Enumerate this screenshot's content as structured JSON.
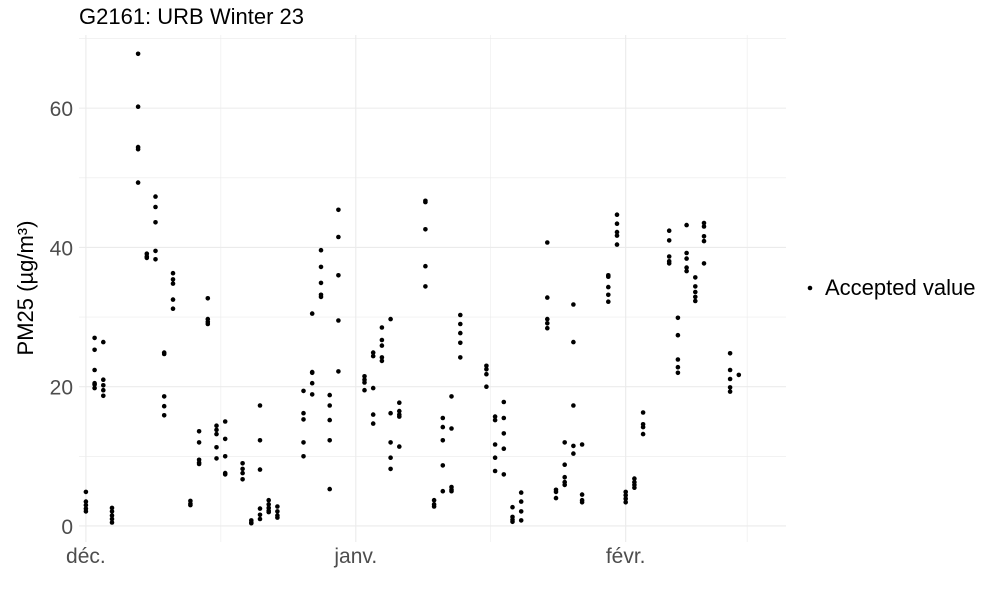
{
  "chart_data": {
    "type": "scatter",
    "title": "G2161: URB Winter 23",
    "xlabel": "",
    "ylabel": "PM25",
    "y_unit": "µg/m³",
    "ylim": [
      -2.3,
      70.5
    ],
    "y_ticks": [
      0,
      20,
      40,
      60
    ],
    "x_ticks": [
      {
        "label": "déc.",
        "date": "2023-12-01"
      },
      {
        "label": "janv.",
        "date": "2024-01-01"
      },
      {
        "label": "févr.",
        "date": "2024-02-01"
      }
    ],
    "xlim": [
      "2023-11-30T05:00",
      "2024-02-19T10:00"
    ],
    "grid": true,
    "legend": {
      "position": "right",
      "entries": [
        "Accepted value"
      ]
    },
    "colors": {
      "points": "#000000",
      "grid": "#ebebeb",
      "tick_text": "#4d4d4d"
    },
    "series": [
      {
        "name": "Accepted value",
        "points": [
          [
            "2023-12-01",
            2.5
          ],
          [
            "2023-12-01",
            3.0
          ],
          [
            "2023-12-01",
            3.5
          ],
          [
            "2023-12-01",
            4.9
          ],
          [
            "2023-12-01",
            2.1
          ],
          [
            "2023-12-02",
            25.3
          ],
          [
            "2023-12-02",
            27.0
          ],
          [
            "2023-12-02",
            22.4
          ],
          [
            "2023-12-02",
            20.5
          ],
          [
            "2023-12-02",
            19.8
          ],
          [
            "2023-12-02",
            20.3
          ],
          [
            "2023-12-03",
            26.4
          ],
          [
            "2023-12-03",
            21.0
          ],
          [
            "2023-12-03",
            20.2
          ],
          [
            "2023-12-03",
            19.5
          ],
          [
            "2023-12-03",
            18.7
          ],
          [
            "2023-12-04",
            2.6
          ],
          [
            "2023-12-04",
            2.1
          ],
          [
            "2023-12-04",
            1.5
          ],
          [
            "2023-12-04",
            1.0
          ],
          [
            "2023-12-04",
            0.5
          ],
          [
            "2023-12-07",
            67.8
          ],
          [
            "2023-12-07",
            60.2
          ],
          [
            "2023-12-07",
            54.4
          ],
          [
            "2023-12-07",
            54.1
          ],
          [
            "2023-12-07",
            49.3
          ],
          [
            "2023-12-08",
            38.7
          ],
          [
            "2023-12-08",
            39.1
          ],
          [
            "2023-12-08",
            38.5
          ],
          [
            "2023-12-09",
            47.3
          ],
          [
            "2023-12-09",
            45.8
          ],
          [
            "2023-12-09",
            43.6
          ],
          [
            "2023-12-09",
            39.5
          ],
          [
            "2023-12-09",
            38.3
          ],
          [
            "2023-12-10",
            24.9
          ],
          [
            "2023-12-10",
            24.7
          ],
          [
            "2023-12-10",
            18.6
          ],
          [
            "2023-12-10",
            17.2
          ],
          [
            "2023-12-10",
            15.9
          ],
          [
            "2023-12-11",
            36.3
          ],
          [
            "2023-12-11",
            35.4
          ],
          [
            "2023-12-11",
            34.8
          ],
          [
            "2023-12-11",
            32.5
          ],
          [
            "2023-12-11",
            31.2
          ],
          [
            "2023-12-13",
            3.6
          ],
          [
            "2023-12-13",
            3.2
          ],
          [
            "2023-12-13",
            3.0
          ],
          [
            "2023-12-14",
            13.6
          ],
          [
            "2023-12-14",
            12.0
          ],
          [
            "2023-12-14",
            9.5
          ],
          [
            "2023-12-14",
            9.1
          ],
          [
            "2023-12-14",
            8.9
          ],
          [
            "2023-12-15",
            32.7
          ],
          [
            "2023-12-15",
            29.7
          ],
          [
            "2023-12-15",
            29.3
          ],
          [
            "2023-12-15",
            29.0
          ],
          [
            "2023-12-16",
            14.4
          ],
          [
            "2023-12-16",
            13.8
          ],
          [
            "2023-12-16",
            13.2
          ],
          [
            "2023-12-16",
            11.3
          ],
          [
            "2023-12-16",
            9.7
          ],
          [
            "2023-12-17",
            15.0
          ],
          [
            "2023-12-17",
            12.5
          ],
          [
            "2023-12-17",
            10.0
          ],
          [
            "2023-12-17",
            7.6
          ],
          [
            "2023-12-17",
            7.4
          ],
          [
            "2023-12-19",
            9.0
          ],
          [
            "2023-12-19",
            8.2
          ],
          [
            "2023-12-19",
            7.6
          ],
          [
            "2023-12-19",
            6.7
          ],
          [
            "2023-12-20",
            0.8
          ],
          [
            "2023-12-20",
            0.5
          ],
          [
            "2023-12-20",
            0.4
          ],
          [
            "2023-12-21",
            17.3
          ],
          [
            "2023-12-21",
            12.3
          ],
          [
            "2023-12-21",
            8.1
          ],
          [
            "2023-12-21",
            2.5
          ],
          [
            "2023-12-21",
            1.6
          ],
          [
            "2023-12-21",
            1.0
          ],
          [
            "2023-12-22",
            3.7
          ],
          [
            "2023-12-22",
            3.1
          ],
          [
            "2023-12-22",
            2.6
          ],
          [
            "2023-12-22",
            2.2
          ],
          [
            "2023-12-22",
            2.0
          ],
          [
            "2023-12-23",
            2.8
          ],
          [
            "2023-12-23",
            2.1
          ],
          [
            "2023-12-23",
            1.5
          ],
          [
            "2023-12-23",
            1.2
          ],
          [
            "2023-12-26",
            19.4
          ],
          [
            "2023-12-26",
            16.2
          ],
          [
            "2023-12-26",
            15.3
          ],
          [
            "2023-12-26",
            12.0
          ],
          [
            "2023-12-26",
            10.0
          ],
          [
            "2023-12-27",
            30.5
          ],
          [
            "2023-12-27",
            22.1
          ],
          [
            "2023-12-27",
            22.0
          ],
          [
            "2023-12-27",
            20.5
          ],
          [
            "2023-12-27",
            18.9
          ],
          [
            "2023-12-28",
            39.6
          ],
          [
            "2023-12-28",
            37.2
          ],
          [
            "2023-12-28",
            34.9
          ],
          [
            "2023-12-28",
            33.2
          ],
          [
            "2023-12-28",
            32.9
          ],
          [
            "2023-12-29",
            18.8
          ],
          [
            "2023-12-29",
            17.3
          ],
          [
            "2023-12-29",
            15.2
          ],
          [
            "2023-12-29",
            12.3
          ],
          [
            "2023-12-29",
            5.3
          ],
          [
            "2023-12-30",
            45.4
          ],
          [
            "2023-12-30",
            41.5
          ],
          [
            "2023-12-30",
            36.0
          ],
          [
            "2023-12-30",
            29.5
          ],
          [
            "2023-12-30",
            22.2
          ],
          [
            "2024-01-02",
            21.5
          ],
          [
            "2024-01-02",
            21.0
          ],
          [
            "2024-01-02",
            20.6
          ],
          [
            "2024-01-02",
            19.5
          ],
          [
            "2024-01-03",
            24.9
          ],
          [
            "2024-01-03",
            24.4
          ],
          [
            "2024-01-03",
            19.8
          ],
          [
            "2024-01-03",
            16.0
          ],
          [
            "2024-01-03",
            14.7
          ],
          [
            "2024-01-04",
            28.5
          ],
          [
            "2024-01-04",
            26.7
          ],
          [
            "2024-01-04",
            25.9
          ],
          [
            "2024-01-04",
            24.2
          ],
          [
            "2024-01-04",
            23.7
          ],
          [
            "2024-01-05",
            29.7
          ],
          [
            "2024-01-05",
            16.2
          ],
          [
            "2024-01-05",
            12.0
          ],
          [
            "2024-01-05",
            9.8
          ],
          [
            "2024-01-05",
            8.2
          ],
          [
            "2024-01-06",
            17.7
          ],
          [
            "2024-01-06",
            16.5
          ],
          [
            "2024-01-06",
            16.0
          ],
          [
            "2024-01-06",
            15.7
          ],
          [
            "2024-01-06",
            11.4
          ],
          [
            "2024-01-09",
            46.7
          ],
          [
            "2024-01-09",
            46.5
          ],
          [
            "2024-01-09",
            42.6
          ],
          [
            "2024-01-09",
            37.3
          ],
          [
            "2024-01-09",
            34.4
          ],
          [
            "2024-01-10",
            3.7
          ],
          [
            "2024-01-10",
            3.1
          ],
          [
            "2024-01-10",
            2.8
          ],
          [
            "2024-01-11",
            15.5
          ],
          [
            "2024-01-11",
            14.2
          ],
          [
            "2024-01-11",
            12.3
          ],
          [
            "2024-01-11",
            8.7
          ],
          [
            "2024-01-11",
            5.0
          ],
          [
            "2024-01-12",
            18.6
          ],
          [
            "2024-01-12",
            14.0
          ],
          [
            "2024-01-12",
            5.6
          ],
          [
            "2024-01-12",
            5.2
          ],
          [
            "2024-01-12",
            5.0
          ],
          [
            "2024-01-13",
            30.3
          ],
          [
            "2024-01-13",
            29.0
          ],
          [
            "2024-01-13",
            27.7
          ],
          [
            "2024-01-13",
            26.3
          ],
          [
            "2024-01-13",
            24.2
          ],
          [
            "2024-01-16",
            23.0
          ],
          [
            "2024-01-16",
            22.5
          ],
          [
            "2024-01-16",
            21.8
          ],
          [
            "2024-01-16",
            20.0
          ],
          [
            "2024-01-17",
            15.7
          ],
          [
            "2024-01-17",
            15.2
          ],
          [
            "2024-01-17",
            11.7
          ],
          [
            "2024-01-17",
            9.8
          ],
          [
            "2024-01-17",
            7.9
          ],
          [
            "2024-01-18",
            17.8
          ],
          [
            "2024-01-18",
            15.5
          ],
          [
            "2024-01-18",
            13.3
          ],
          [
            "2024-01-18",
            11.1
          ],
          [
            "2024-01-18",
            7.4
          ],
          [
            "2024-01-19",
            2.7
          ],
          [
            "2024-01-19",
            1.3
          ],
          [
            "2024-01-19",
            0.9
          ],
          [
            "2024-01-19",
            0.6
          ],
          [
            "2024-01-20",
            4.8
          ],
          [
            "2024-01-20",
            3.5
          ],
          [
            "2024-01-20",
            2.1
          ],
          [
            "2024-01-20",
            0.8
          ],
          [
            "2024-01-23",
            40.7
          ],
          [
            "2024-01-23",
            32.8
          ],
          [
            "2024-01-23",
            29.7
          ],
          [
            "2024-01-23",
            29.1
          ],
          [
            "2024-01-23",
            28.4
          ],
          [
            "2024-01-24",
            5.2
          ],
          [
            "2024-01-24",
            4.9
          ],
          [
            "2024-01-24",
            4.0
          ],
          [
            "2024-01-25",
            12.0
          ],
          [
            "2024-01-25",
            8.8
          ],
          [
            "2024-01-25",
            7.0
          ],
          [
            "2024-01-25",
            6.3
          ],
          [
            "2024-01-25",
            5.9
          ],
          [
            "2024-01-26",
            31.8
          ],
          [
            "2024-01-26",
            26.4
          ],
          [
            "2024-01-26",
            17.3
          ],
          [
            "2024-01-26",
            11.5
          ],
          [
            "2024-01-26",
            10.4
          ],
          [
            "2024-01-27",
            11.7
          ],
          [
            "2024-01-27",
            4.5
          ],
          [
            "2024-01-27",
            3.7
          ],
          [
            "2024-01-27",
            3.4
          ],
          [
            "2024-01-30",
            36.0
          ],
          [
            "2024-01-30",
            35.8
          ],
          [
            "2024-01-30",
            34.3
          ],
          [
            "2024-01-30",
            33.2
          ],
          [
            "2024-01-30",
            32.2
          ],
          [
            "2024-01-31",
            44.7
          ],
          [
            "2024-01-31",
            43.4
          ],
          [
            "2024-01-31",
            42.2
          ],
          [
            "2024-01-31",
            41.7
          ],
          [
            "2024-01-31",
            40.4
          ],
          [
            "2024-02-01",
            4.9
          ],
          [
            "2024-02-01",
            4.4
          ],
          [
            "2024-02-01",
            3.9
          ],
          [
            "2024-02-01",
            3.4
          ],
          [
            "2024-02-02",
            6.8
          ],
          [
            "2024-02-02",
            6.3
          ],
          [
            "2024-02-02",
            5.9
          ],
          [
            "2024-02-02",
            5.5
          ],
          [
            "2024-02-03",
            16.3
          ],
          [
            "2024-02-03",
            14.6
          ],
          [
            "2024-02-03",
            14.2
          ],
          [
            "2024-02-03",
            13.2
          ],
          [
            "2024-02-06",
            42.4
          ],
          [
            "2024-02-06",
            41.0
          ],
          [
            "2024-02-06",
            38.7
          ],
          [
            "2024-02-06",
            38.0
          ],
          [
            "2024-02-06",
            37.7
          ],
          [
            "2024-02-07",
            29.9
          ],
          [
            "2024-02-07",
            27.4
          ],
          [
            "2024-02-07",
            23.9
          ],
          [
            "2024-02-07",
            22.8
          ],
          [
            "2024-02-07",
            22.0
          ],
          [
            "2024-02-08",
            43.2
          ],
          [
            "2024-02-08",
            39.2
          ],
          [
            "2024-02-08",
            38.4
          ],
          [
            "2024-02-08",
            37.1
          ],
          [
            "2024-02-08",
            36.6
          ],
          [
            "2024-02-09",
            35.7
          ],
          [
            "2024-02-09",
            34.4
          ],
          [
            "2024-02-09",
            33.6
          ],
          [
            "2024-02-09",
            32.9
          ],
          [
            "2024-02-09",
            32.3
          ],
          [
            "2024-02-10",
            43.5
          ],
          [
            "2024-02-10",
            43.0
          ],
          [
            "2024-02-10",
            41.6
          ],
          [
            "2024-02-10",
            40.9
          ],
          [
            "2024-02-10",
            37.7
          ],
          [
            "2024-02-13",
            24.8
          ],
          [
            "2024-02-13",
            22.4
          ],
          [
            "2024-02-13",
            21.1
          ],
          [
            "2024-02-13",
            19.9
          ],
          [
            "2024-02-13",
            19.3
          ],
          [
            "2024-02-14",
            21.7
          ]
        ]
      }
    ]
  }
}
